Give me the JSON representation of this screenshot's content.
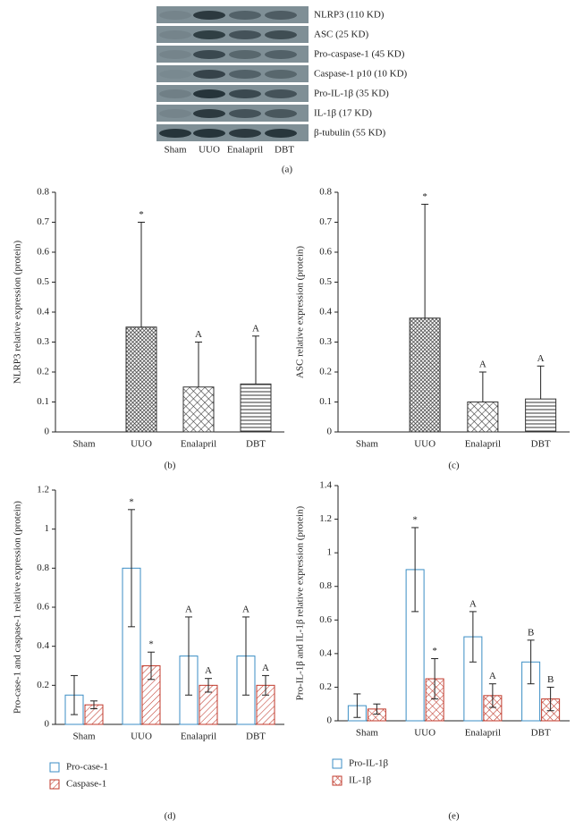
{
  "blot": {
    "rows": [
      "NLRP3 (110 KD)",
      "ASC (25 KD)",
      "Pro-caspase-1 (45 KD)",
      "Caspase-1 p10 (10 KD)",
      "Pro-IL-1β (35 KD)",
      "IL-1β (17 KD)",
      "β-tubulin (55 KD)"
    ],
    "lanes": [
      "Sham",
      "UUO",
      "Enalapril",
      "DBT"
    ],
    "panel": "(a)"
  },
  "chart_data": [
    {
      "type": "bar",
      "panel": "(b)",
      "y_label": "NLRP3 relative expression (protein)",
      "categories": [
        "Sham",
        "UUO",
        "Enalapril",
        "DBT"
      ],
      "values": [
        0,
        0.35,
        0.15,
        0.16
      ],
      "errors": [
        0,
        0.35,
        0.15,
        0.16
      ],
      "annotations": [
        null,
        "*",
        "A",
        "A"
      ],
      "patterns": [
        "none",
        "dense-cross",
        "cross",
        "horizontal"
      ],
      "color": "#333333",
      "error_style": "upper",
      "ylim": [
        0,
        0.8
      ],
      "yticks": [
        0,
        0.1,
        0.2,
        0.3,
        0.4,
        0.5,
        0.6,
        0.7,
        0.8
      ]
    },
    {
      "type": "bar",
      "panel": "(c)",
      "y_label": "ASC relative expression (protein)",
      "categories": [
        "Sham",
        "UUO",
        "Enalapril",
        "DBT"
      ],
      "values": [
        0,
        0.38,
        0.1,
        0.11
      ],
      "errors": [
        0,
        0.38,
        0.1,
        0.11
      ],
      "annotations": [
        null,
        "*",
        "A",
        "A"
      ],
      "patterns": [
        "none",
        "dense-cross",
        "cross",
        "horizontal"
      ],
      "color": "#333333",
      "error_style": "upper",
      "ylim": [
        0,
        0.8
      ],
      "yticks": [
        0,
        0.1,
        0.2,
        0.3,
        0.4,
        0.5,
        0.6,
        0.7,
        0.8
      ]
    },
    {
      "type": "grouped-bar",
      "panel": "(d)",
      "y_label": "Pro-case-1 and caspase-1 relative expression (protein)",
      "categories": [
        "Sham",
        "UUO",
        "Enalapril",
        "DBT"
      ],
      "series": [
        {
          "name": "Pro-case-1",
          "color": "#3b8ec4",
          "pattern": "none",
          "values": [
            0.15,
            0.8,
            0.35,
            0.35
          ],
          "errors": [
            0.1,
            0.3,
            0.2,
            0.2
          ],
          "annotations": [
            null,
            "*",
            "A",
            "A"
          ]
        },
        {
          "name": "Caspase-1",
          "color": "#c0392b",
          "pattern": "diagonal",
          "values": [
            0.1,
            0.3,
            0.2,
            0.2
          ],
          "errors": [
            0.02,
            0.07,
            0.035,
            0.05
          ],
          "annotations": [
            null,
            "*",
            "A",
            "A"
          ]
        }
      ],
      "error_style": "both",
      "legend": "below",
      "ylim": [
        0,
        1.2
      ],
      "yticks": [
        0,
        0.2,
        0.4,
        0.6,
        0.8,
        1,
        1.2
      ]
    },
    {
      "type": "grouped-bar",
      "panel": "(e)",
      "y_label": "Pro-IL-1β and IL-1β relative expression (protein)",
      "categories": [
        "Sham",
        "UUO",
        "Enalapril",
        "DBT"
      ],
      "series": [
        {
          "name": "Pro-IL-1β",
          "color": "#3b8ec4",
          "pattern": "none",
          "values": [
            0.09,
            0.9,
            0.5,
            0.35
          ],
          "errors": [
            0.07,
            0.25,
            0.15,
            0.13
          ],
          "annotations": [
            null,
            "*",
            "A",
            "B"
          ]
        },
        {
          "name": "IL-1β",
          "color": "#c0392b",
          "pattern": "cross",
          "values": [
            0.07,
            0.25,
            0.15,
            0.13
          ],
          "errors": [
            0.03,
            0.12,
            0.07,
            0.07
          ],
          "annotations": [
            null,
            "*",
            "A",
            "B"
          ]
        }
      ],
      "error_style": "both",
      "legend": "below",
      "ylim": [
        0,
        1.4
      ],
      "yticks": [
        0,
        0.2,
        0.4,
        0.6,
        0.8,
        1,
        1.2,
        1.4
      ]
    }
  ]
}
